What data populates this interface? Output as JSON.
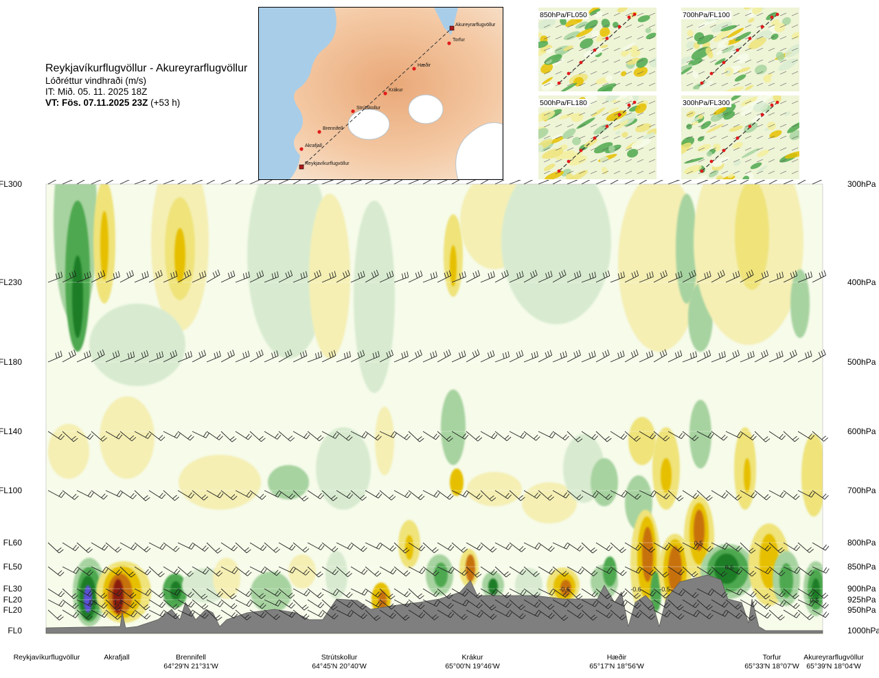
{
  "header": {
    "route": "Reykjavíkurflugvöllur - Akureyrarflugvöllur",
    "subtitle": "Lóðréttur vindhraði (m/s)",
    "it_line": "IT: Mið. 05. 11. 2025 18Z",
    "vt_bold": "VT: Fös. 07.11.2025 23Z",
    "vt_lead": "(+53 h)"
  },
  "route_map": {
    "points": [
      {
        "name": "Akureyrarflugvöllur",
        "type": "airport"
      },
      {
        "name": "Torfur",
        "type": "waypoint"
      },
      {
        "name": "Hæðir",
        "type": "waypoint"
      },
      {
        "name": "Krákur",
        "type": "waypoint"
      },
      {
        "name": "Strútskollur",
        "type": "waypoint"
      },
      {
        "name": "Brennifell",
        "type": "waypoint"
      },
      {
        "name": "Akrafjall",
        "type": "waypoint"
      },
      {
        "name": "Reykjavíkurflugvöllur",
        "type": "airport"
      }
    ]
  },
  "thumbnails": [
    {
      "label": "850hPa/FL050"
    },
    {
      "label": "700hPa/FL100"
    },
    {
      "label": "500hPa/FL180"
    },
    {
      "label": "300hPa/FL300"
    }
  ],
  "colors": {
    "strong_down": "#5a4fd6",
    "down_3": "#1e7d25",
    "down_2": "#4ea84f",
    "down_1": "#a7d3a0",
    "down_0": "#d8ebd0",
    "neutral": "#f6fbea",
    "up_0": "#f5efb4",
    "up_1": "#efe37a",
    "up_2": "#e6c000",
    "up_3": "#c7710a",
    "strong_up": "#8a1a0a",
    "terrain": "#7f7f7f"
  },
  "chart_data": {
    "type": "heatmap",
    "title": "Lóðréttur vindhraði (m/s)",
    "y_left_ticks": [
      "FL300",
      "FL230",
      "FL180",
      "FL140",
      "FL100",
      "FL60",
      "FL50",
      "FL30",
      "FL20",
      "FL20",
      "FL0"
    ],
    "y_right_ticks": [
      "300hPa",
      "400hPa",
      "500hPa",
      "600hPa",
      "700hPa",
      "800hPa",
      "850hPa",
      "900hPa",
      "925hPa",
      "950hPa",
      "1000hPa"
    ],
    "pressure_levels_hpa": [
      300,
      400,
      500,
      600,
      700,
      800,
      850,
      900,
      925,
      950,
      1000
    ],
    "x_points": [
      {
        "name": "Reykjavíkurflugvöllur",
        "coord": ""
      },
      {
        "name": "Akrafjall",
        "coord": ""
      },
      {
        "name": "Brennifell",
        "coord": "64°29'N 21°31'W"
      },
      {
        "name": "Strútskollur",
        "coord": "64°45'N 20°40'W"
      },
      {
        "name": "Krákur",
        "coord": "65°00'N 19°46'W"
      },
      {
        "name": "Hæðir",
        "coord": "65°17'N 18°56'W"
      },
      {
        "name": "Torfur",
        "coord": "65°33'N 18°07'W"
      },
      {
        "name": "Akureyrarflugvöllur",
        "coord": "65°39'N 18°04'W"
      }
    ],
    "value_labels": [
      {
        "text": "1.5",
        "near": "Akrafjall",
        "pressure_hpa": 930
      },
      {
        "text": "1.4",
        "near": "Akrafjall",
        "pressure_hpa": 930
      },
      {
        "text": "-0.6",
        "near": "Krákur",
        "pressure_hpa": 900
      },
      {
        "text": "-0.6",
        "near": "Hæðir",
        "pressure_hpa": 900
      },
      {
        "text": "-0.5",
        "near": "Hæðir",
        "pressure_hpa": 900
      },
      {
        "text": "0.5",
        "near": "Hæðir",
        "pressure_hpa": 800
      },
      {
        "text": "0.6",
        "near": "Torfur",
        "pressure_hpa": 850
      },
      {
        "text": "0.5",
        "near": "Akureyrarflugvöllur",
        "pressure_hpa": 925
      }
    ],
    "wind_barb_rows_hpa": [
      300,
      400,
      500,
      600,
      700,
      800,
      850,
      900,
      925,
      950
    ]
  }
}
